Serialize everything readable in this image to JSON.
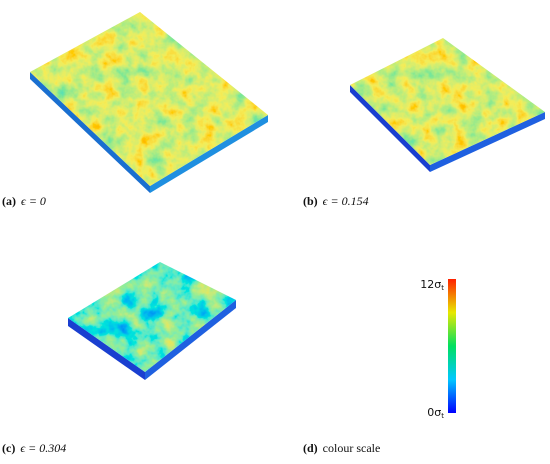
{
  "panels": [
    {
      "letter": "(a)",
      "caption": "ϵ = 0"
    },
    {
      "letter": "(b)",
      "caption": "ϵ = 0.154"
    },
    {
      "letter": "(c)",
      "caption": "ϵ = 0.304"
    },
    {
      "letter": "(d)",
      "caption": "colour scale"
    }
  ],
  "colour_scale": {
    "max": {
      "main": "12σ",
      "sub": "t"
    },
    "min": {
      "main": "0σ",
      "sub": "t"
    }
  }
}
